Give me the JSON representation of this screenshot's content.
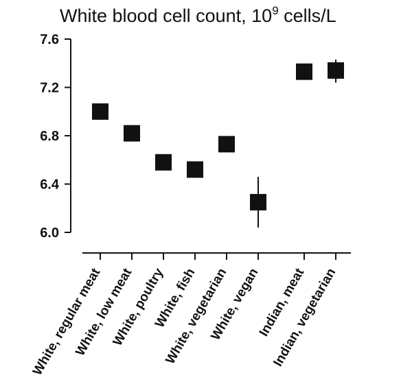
{
  "chart_data": {
    "type": "scatter",
    "title_main": "White blood cell count, 10",
    "title_sup": "9",
    "title_end": " cells/L",
    "ylim": [
      6.0,
      7.6
    ],
    "yticks": [
      "7.6",
      "7.2",
      "6.8",
      "6.4",
      "6.0"
    ],
    "ytick_values": [
      7.6,
      7.2,
      6.8,
      6.4,
      6.0
    ],
    "grid": false,
    "marker_color": "#111111",
    "categories": [
      "White, regular meat",
      "White, low meat",
      "White, poultry",
      "White, fish",
      "White, vegetarian",
      "White, vegan",
      "Indian, meat",
      "Indian, vegetarian"
    ],
    "values": [
      7.0,
      6.82,
      6.58,
      6.52,
      6.73,
      6.25,
      7.33,
      7.34
    ],
    "ci_low": [
      null,
      null,
      null,
      null,
      null,
      6.04,
      null,
      7.24
    ],
    "ci_high": [
      null,
      null,
      null,
      null,
      null,
      6.46,
      null,
      7.43
    ]
  }
}
